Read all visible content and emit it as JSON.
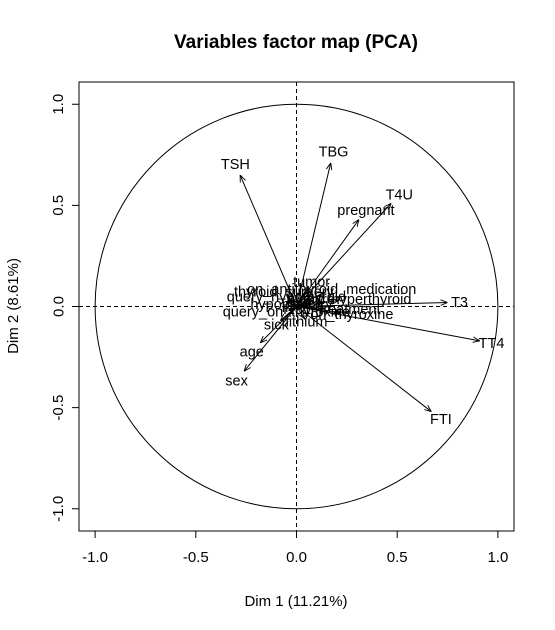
{
  "chart_data": {
    "type": "scatter",
    "title": "Variables factor map (PCA)",
    "xlabel": "Dim 1 (11.21%)",
    "ylabel": "Dim 2 (8.61%)",
    "xlim": [
      -1.08,
      1.08
    ],
    "ylim": [
      -1.11,
      1.11
    ],
    "xticks": [
      "-1.0",
      "-0.5",
      "0.0",
      "0.5",
      "1.0"
    ],
    "yticks": [
      "-1.0",
      "-0.5",
      "0.0",
      "0.5",
      "1.0"
    ],
    "correlation_circle": true,
    "reference_lines": "dashed at x=0 and y=0",
    "variables": [
      {
        "name": "TSH",
        "x": -0.28,
        "y": 0.65
      },
      {
        "name": "TBG",
        "x": 0.17,
        "y": 0.71
      },
      {
        "name": "T4U",
        "x": 0.47,
        "y": 0.51
      },
      {
        "name": "pregnant",
        "x": 0.31,
        "y": 0.43
      },
      {
        "name": "tumor",
        "x": 0.06,
        "y": 0.1
      },
      {
        "name": "on_antithyroid_medication",
        "x": 0.14,
        "y": 0.07
      },
      {
        "name": "thyroid_surgery",
        "x": -0.05,
        "y": 0.06
      },
      {
        "name": "query_hypothyroid",
        "x": -0.04,
        "y": 0.04
      },
      {
        "name": "goitre",
        "x": 0.08,
        "y": 0.03
      },
      {
        "name": "query_hyperthyroid",
        "x": 0.21,
        "y": 0.03
      },
      {
        "name": "psych",
        "x": 0.03,
        "y": 0.01
      },
      {
        "name": "hypopituitary",
        "x": -0.02,
        "y": 0.01
      },
      {
        "name": "I131_treatment",
        "x": 0.14,
        "y": -0.01
      },
      {
        "name": "on_thyroxine",
        "x": 0.22,
        "y": -0.03
      },
      {
        "name": "query_on_thyroxine",
        "x": -0.04,
        "y": -0.02
      },
      {
        "name": "T3",
        "x": 0.75,
        "y": 0.02
      },
      {
        "name": "TT4",
        "x": 0.91,
        "y": -0.17
      },
      {
        "name": "FTI",
        "x": 0.67,
        "y": -0.52
      },
      {
        "name": "lithium",
        "x": 0.04,
        "y": -0.06
      },
      {
        "name": "sick",
        "x": -0.08,
        "y": -0.07
      },
      {
        "name": "age",
        "x": -0.18,
        "y": -0.18
      },
      {
        "name": "sex",
        "x": -0.26,
        "y": -0.32
      }
    ]
  }
}
